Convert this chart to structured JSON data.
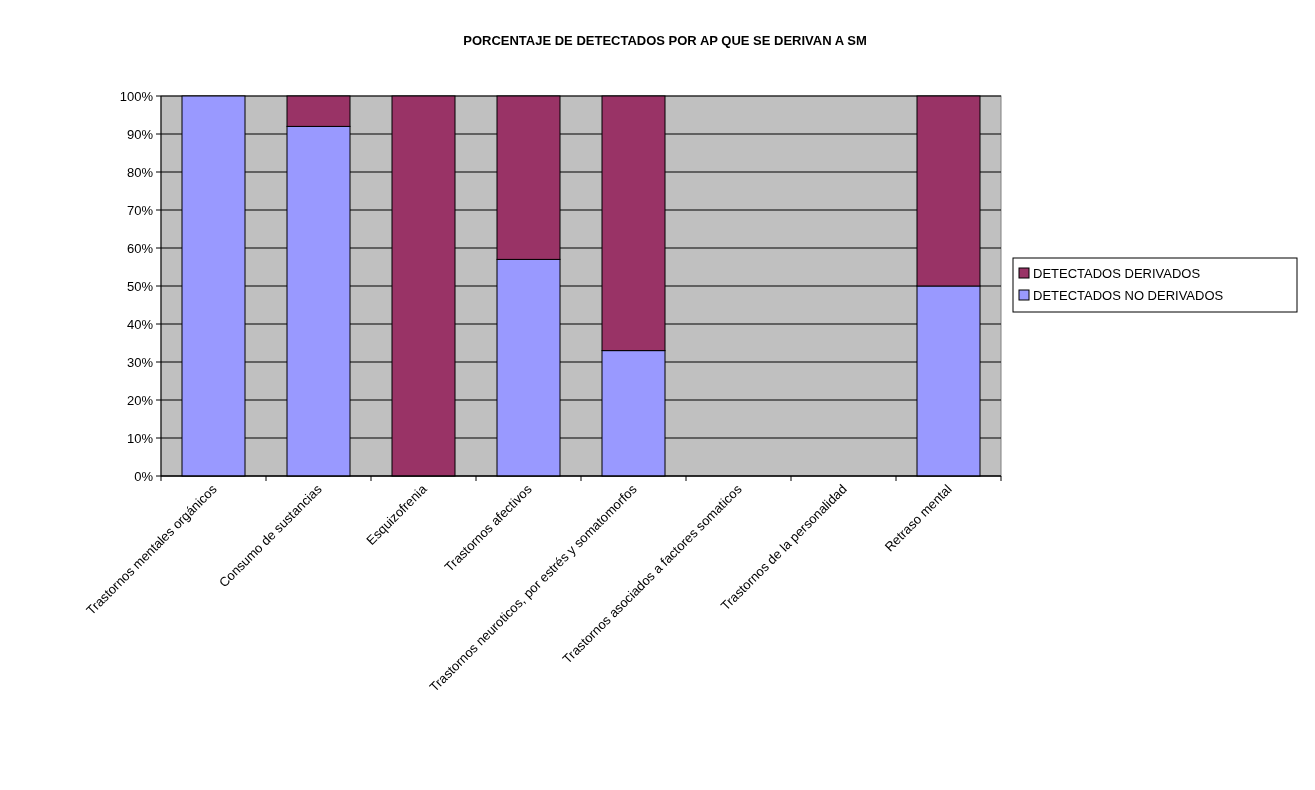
{
  "chart_data": {
    "type": "bar",
    "title": "PORCENTAJE DE DETECTADOS POR AP QUE SE DERIVAN A SM",
    "categories": [
      "Trastornos mentales orgánicos",
      "Consumo de sustancias",
      "Esquizofrenia",
      "Trastornos afectivos",
      "Trastornos neuroticos, por estrés y somatomorfos",
      "Trastornos asociados a factores somaticos",
      "Trastornos de la personalidad",
      "Retraso mental"
    ],
    "stacked": true,
    "series": [
      {
        "name": "DETECTADOS NO DERIVADOS",
        "color": "#9999ff",
        "values": [
          100,
          92,
          0,
          57,
          33,
          null,
          null,
          50
        ]
      },
      {
        "name": "DETECTADOS DERIVADOS",
        "color": "#993366",
        "values": [
          0,
          8,
          100,
          43,
          67,
          null,
          null,
          50
        ]
      }
    ],
    "ylim": [
      0,
      100
    ],
    "yticks": [
      {
        "value": 0,
        "label": "0%"
      },
      {
        "value": 10,
        "label": "10%"
      },
      {
        "value": 20,
        "label": "20%"
      },
      {
        "value": 30,
        "label": "30%"
      },
      {
        "value": 40,
        "label": "40%"
      },
      {
        "value": 50,
        "label": "50%"
      },
      {
        "value": 60,
        "label": "60%"
      },
      {
        "value": 70,
        "label": "70%"
      },
      {
        "value": 80,
        "label": "80%"
      },
      {
        "value": 90,
        "label": "90%"
      },
      {
        "value": 100,
        "label": "100%"
      }
    ],
    "grid": "y",
    "legend": "right"
  }
}
